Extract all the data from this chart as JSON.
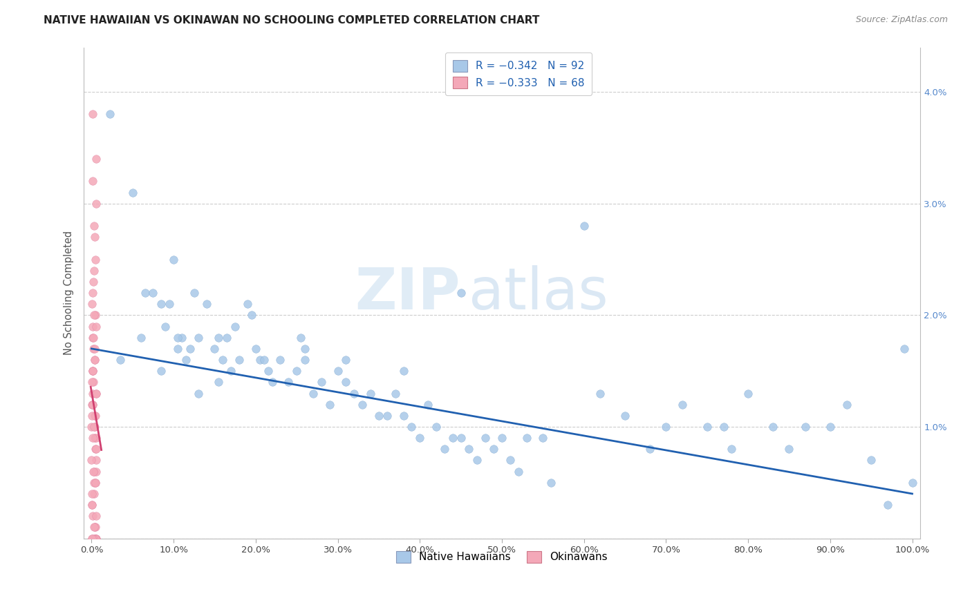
{
  "title": "NATIVE HAWAIIAN VS OKINAWAN NO SCHOOLING COMPLETED CORRELATION CHART",
  "source": "Source: ZipAtlas.com",
  "ylabel": "No Schooling Completed",
  "xlim": [
    -0.01,
    1.01
  ],
  "ylim": [
    0,
    0.044
  ],
  "xtick_vals": [
    0.0,
    0.1,
    0.2,
    0.3,
    0.4,
    0.5,
    0.6,
    0.7,
    0.8,
    0.9,
    1.0
  ],
  "xticklabels": [
    "0.0%",
    "10.0%",
    "20.0%",
    "30.0%",
    "40.0%",
    "50.0%",
    "60.0%",
    "70.0%",
    "80.0%",
    "90.0%",
    "100.0%"
  ],
  "ytick_vals": [
    0.0,
    0.01,
    0.02,
    0.03,
    0.04
  ],
  "yticklabels_right": [
    "",
    "1.0%",
    "2.0%",
    "3.0%",
    "4.0%"
  ],
  "legend_labels": [
    "R = −0.342   N = 92",
    "R = −0.333   N = 68"
  ],
  "legend_footer": [
    "Native Hawaiians",
    "Okinawans"
  ],
  "watermark_zip": "ZIP",
  "watermark_atlas": "atlas",
  "blue_scatter_color": "#a8c8e8",
  "pink_scatter_color": "#f4a8b8",
  "blue_line_color": "#2060b0",
  "pink_line_color": "#d04070",
  "blue_legend_color": "#a8c8e8",
  "pink_legend_color": "#f4a8b8",
  "grid_color": "#cccccc",
  "title_color": "#222222",
  "source_color": "#888888",
  "ylabel_color": "#555555",
  "tick_color": "#5588cc",
  "xtick_color": "#444444",
  "blue_line_start_y": 0.017,
  "blue_line_end_y": 0.004,
  "native_hawaiian_x": [
    0.022,
    0.05,
    0.065,
    0.075,
    0.085,
    0.09,
    0.095,
    0.1,
    0.105,
    0.11,
    0.115,
    0.12,
    0.125,
    0.13,
    0.14,
    0.15,
    0.155,
    0.16,
    0.165,
    0.17,
    0.175,
    0.18,
    0.19,
    0.2,
    0.205,
    0.21,
    0.215,
    0.22,
    0.23,
    0.24,
    0.25,
    0.255,
    0.26,
    0.27,
    0.28,
    0.29,
    0.3,
    0.31,
    0.32,
    0.33,
    0.34,
    0.35,
    0.36,
    0.37,
    0.38,
    0.39,
    0.4,
    0.41,
    0.42,
    0.43,
    0.44,
    0.45,
    0.46,
    0.47,
    0.48,
    0.49,
    0.5,
    0.51,
    0.52,
    0.53,
    0.55,
    0.56,
    0.6,
    0.62,
    0.65,
    0.68,
    0.7,
    0.72,
    0.75,
    0.77,
    0.78,
    0.8,
    0.83,
    0.85,
    0.87,
    0.9,
    0.92,
    0.95,
    0.97,
    0.99,
    1.0,
    0.45,
    0.38,
    0.31,
    0.26,
    0.195,
    0.155,
    0.13,
    0.105,
    0.085,
    0.06,
    0.035
  ],
  "native_hawaiian_y": [
    0.038,
    0.031,
    0.022,
    0.022,
    0.021,
    0.019,
    0.021,
    0.025,
    0.017,
    0.018,
    0.016,
    0.017,
    0.022,
    0.018,
    0.021,
    0.017,
    0.014,
    0.016,
    0.018,
    0.015,
    0.019,
    0.016,
    0.021,
    0.017,
    0.016,
    0.016,
    0.015,
    0.014,
    0.016,
    0.014,
    0.015,
    0.018,
    0.016,
    0.013,
    0.014,
    0.012,
    0.015,
    0.014,
    0.013,
    0.012,
    0.013,
    0.011,
    0.011,
    0.013,
    0.011,
    0.01,
    0.009,
    0.012,
    0.01,
    0.008,
    0.009,
    0.009,
    0.008,
    0.007,
    0.009,
    0.008,
    0.009,
    0.007,
    0.006,
    0.009,
    0.009,
    0.005,
    0.028,
    0.013,
    0.011,
    0.008,
    0.01,
    0.012,
    0.01,
    0.01,
    0.008,
    0.013,
    0.01,
    0.008,
    0.01,
    0.01,
    0.012,
    0.007,
    0.003,
    0.017,
    0.005,
    0.022,
    0.015,
    0.016,
    0.017,
    0.02,
    0.018,
    0.013,
    0.018,
    0.015,
    0.018,
    0.016
  ],
  "okinawan_y": [
    0.038,
    0.034,
    0.032,
    0.03,
    0.028,
    0.027,
    0.025,
    0.024,
    0.023,
    0.022,
    0.021,
    0.02,
    0.02,
    0.019,
    0.019,
    0.018,
    0.018,
    0.017,
    0.017,
    0.016,
    0.016,
    0.015,
    0.015,
    0.015,
    0.014,
    0.014,
    0.013,
    0.013,
    0.013,
    0.012,
    0.012,
    0.012,
    0.011,
    0.011,
    0.011,
    0.01,
    0.01,
    0.01,
    0.009,
    0.009,
    0.009,
    0.008,
    0.008,
    0.007,
    0.007,
    0.006,
    0.006,
    0.006,
    0.005,
    0.005,
    0.005,
    0.004,
    0.004,
    0.003,
    0.003,
    0.002,
    0.002,
    0.001,
    0.001,
    0.001,
    0.0,
    0.0,
    0.0,
    0.0,
    0.0,
    0.0,
    0.0,
    0.0
  ]
}
